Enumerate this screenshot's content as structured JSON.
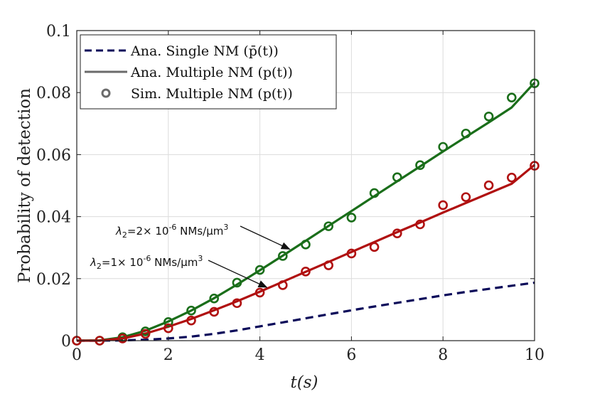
{
  "chart_data": {
    "type": "line",
    "title": "",
    "xlabel": "t(s)",
    "ylabel": "Probability of detection",
    "xlim": [
      0,
      10
    ],
    "ylim": [
      0,
      0.1
    ],
    "xticks": [
      0,
      2,
      4,
      6,
      8,
      10
    ],
    "xtick_labels": [
      "0",
      "2",
      "4",
      "6",
      "8",
      "10"
    ],
    "yticks": [
      0,
      0.02,
      0.04,
      0.06,
      0.08,
      0.1
    ],
    "ytick_labels": [
      "0",
      "0.02",
      "0.04",
      "0.06",
      "0.08",
      "0.1"
    ],
    "grid": true,
    "legend_position": "top-left",
    "colors": {
      "navy": "#0a0a5a",
      "gray": "#6b6b6b",
      "green": "#1a6e1a",
      "red": "#b01010"
    },
    "legend": [
      {
        "label": "Ana. Single NM (p̄(t))",
        "style": "dashed",
        "color": "#0a0a5a"
      },
      {
        "label": "Ana. Multiple NM (p(t))",
        "style": "solid",
        "color": "#6b6b6b"
      },
      {
        "label": "Sim. Multiple NM (p(t))",
        "style": "marker",
        "color": "#6b6b6b"
      }
    ],
    "series": [
      {
        "name": "Ana. Single NM",
        "style": "dashed",
        "color": "#0a0a5a",
        "x": [
          0,
          0.5,
          1,
          1.5,
          2,
          2.5,
          3,
          3.5,
          4,
          4.5,
          5,
          5.5,
          6,
          6.5,
          7,
          7.5,
          8,
          8.5,
          9,
          9.5,
          10
        ],
        "values": [
          0,
          0,
          0.0001,
          0.0003,
          0.0007,
          0.0013,
          0.0022,
          0.0033,
          0.0046,
          0.0059,
          0.0072,
          0.0085,
          0.0098,
          0.011,
          0.0122,
          0.0134,
          0.0146,
          0.0157,
          0.0167,
          0.0177,
          0.0187
        ]
      },
      {
        "name": "Ana. Multiple NM (λ2=2e-6)",
        "style": "solid",
        "color": "#1a6e1a",
        "x": [
          0,
          0.5,
          1,
          1.5,
          2,
          2.5,
          3,
          3.5,
          4,
          4.5,
          5,
          5.5,
          6,
          6.5,
          7,
          7.5,
          8,
          8.5,
          9,
          9.5,
          10
        ],
        "values": [
          0,
          0.0001,
          0.0011,
          0.0032,
          0.0062,
          0.0097,
          0.0137,
          0.0181,
          0.0227,
          0.0274,
          0.0322,
          0.037,
          0.0418,
          0.0466,
          0.0514,
          0.0562,
          0.061,
          0.0657,
          0.0704,
          0.0752,
          0.0832
        ]
      },
      {
        "name": "Sim. Multiple NM (λ2=2e-6)",
        "style": "marker",
        "color": "#1a6e1a",
        "x": [
          0,
          0.5,
          1,
          1.5,
          2,
          2.5,
          3,
          3.5,
          4,
          4.5,
          5,
          5.5,
          6,
          6.5,
          7,
          7.5,
          8,
          8.5,
          9,
          9.5,
          10
        ],
        "values": [
          0,
          0,
          0.0011,
          0.003,
          0.006,
          0.0097,
          0.0136,
          0.0187,
          0.0228,
          0.0273,
          0.031,
          0.0369,
          0.0397,
          0.0476,
          0.0527,
          0.0566,
          0.0625,
          0.0668,
          0.0723,
          0.0784,
          0.083
        ]
      },
      {
        "name": "Ana. Multiple NM (λ2=1e-6)",
        "style": "solid",
        "color": "#b01010",
        "x": [
          0,
          0.5,
          1,
          1.5,
          2,
          2.5,
          3,
          3.5,
          4,
          4.5,
          5,
          5.5,
          6,
          6.5,
          7,
          7.5,
          8,
          8.5,
          9,
          9.5,
          10
        ],
        "values": [
          0,
          0,
          0.0007,
          0.0023,
          0.0045,
          0.007,
          0.0098,
          0.0127,
          0.0158,
          0.019,
          0.0222,
          0.0254,
          0.0286,
          0.0318,
          0.035,
          0.0381,
          0.0413,
          0.0444,
          0.0475,
          0.0506,
          0.0567
        ]
      },
      {
        "name": "Sim. Multiple NM (λ2=1e-6)",
        "style": "marker",
        "color": "#b01010",
        "x": [
          0,
          0.5,
          1,
          1.5,
          2,
          2.5,
          3,
          3.5,
          4,
          4.5,
          5,
          5.5,
          6,
          6.5,
          7,
          7.5,
          8,
          8.5,
          9,
          9.5,
          10
        ],
        "values": [
          0,
          0,
          0.0007,
          0.0022,
          0.004,
          0.0065,
          0.0093,
          0.0121,
          0.0155,
          0.0179,
          0.0223,
          0.0243,
          0.0281,
          0.0302,
          0.0346,
          0.0375,
          0.0437,
          0.0463,
          0.0501,
          0.0526,
          0.0564
        ]
      }
    ],
    "annotations": [
      {
        "prefix": "λ",
        "sub": "2",
        "mid": "=2× 10",
        "sup": "-6",
        "unit": " NMs/μm",
        "sup2": "3",
        "points_to_x": 4.65,
        "points_to_y": 0.0295
      },
      {
        "prefix": "λ",
        "sub": "2",
        "mid": "=1× 10",
        "sup": "-6",
        "unit": " NMs/μm",
        "sup2": "3",
        "points_to_x": 4.15,
        "points_to_y": 0.0172
      }
    ]
  }
}
